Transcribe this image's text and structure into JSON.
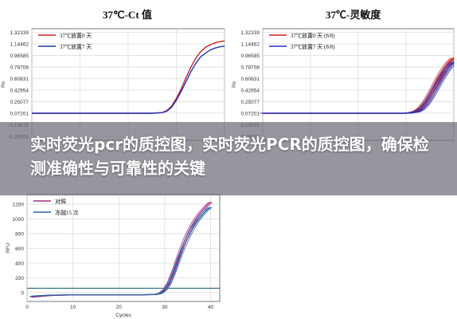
{
  "banner": {
    "text": "实时荧光pcr的质控图，实时荧光PCR的质控图，确保检测准确性与可靠性的关键"
  },
  "chart_data": [
    {
      "type": "line",
      "title": "37℃-Ct 值",
      "xlabel": "",
      "ylabel": "Rn",
      "yticks": [
        "1.32339",
        "1.14462",
        "0.96585",
        "0.78708",
        "0.60831",
        "0.42954",
        "0.25077",
        "0.07201",
        "-0.10676",
        "-0.28553"
      ],
      "ylim": [
        -0.35,
        1.38
      ],
      "xlim": [
        0,
        40
      ],
      "grid": true,
      "legend_position": "top-left",
      "series": [
        {
          "name": "37℃放置0 天",
          "color": "#cc2222",
          "x": [
            0,
            10,
            20,
            25,
            27,
            28,
            29,
            30,
            31,
            32,
            33,
            34,
            35,
            36,
            37,
            38,
            39,
            40
          ],
          "y": [
            0.07,
            0.07,
            0.07,
            0.07,
            0.08,
            0.11,
            0.18,
            0.3,
            0.45,
            0.62,
            0.78,
            0.92,
            1.02,
            1.09,
            1.13,
            1.16,
            1.18,
            1.19
          ]
        },
        {
          "name": "37℃放置7 天",
          "color": "#2233bb",
          "x": [
            0,
            10,
            20,
            25,
            27,
            28,
            29,
            30,
            31,
            32,
            33,
            34,
            35,
            36,
            37,
            38,
            39,
            40
          ],
          "y": [
            0.07,
            0.07,
            0.07,
            0.07,
            0.08,
            0.1,
            0.16,
            0.27,
            0.41,
            0.56,
            0.71,
            0.84,
            0.94,
            1.0,
            1.05,
            1.08,
            1.1,
            1.11
          ]
        }
      ]
    },
    {
      "type": "line",
      "title": "37℃-灵敏度",
      "xlabel": "",
      "ylabel": "Rn",
      "yticks": [
        "1.32339",
        "1.14462",
        "0.96585",
        "0.78708",
        "0.60831",
        "0.42954",
        "0.25077",
        "0.07201",
        "-0.10676",
        "-0.28553"
      ],
      "ylim": [
        -0.35,
        1.38
      ],
      "xlim": [
        0,
        40
      ],
      "grid": true,
      "legend_position": "top-left",
      "series": [
        {
          "name": "37℃放置0 天  (8/8)",
          "color": "#cc2222",
          "x": [
            0,
            10,
            20,
            28,
            30,
            31,
            32,
            33,
            34,
            35,
            36,
            37,
            38,
            39,
            40
          ],
          "y": [
            0.07,
            0.07,
            0.07,
            0.07,
            0.07,
            0.08,
            0.1,
            0.15,
            0.24,
            0.36,
            0.5,
            0.64,
            0.76,
            0.86,
            0.93
          ]
        },
        {
          "name": "37℃放置7 天  (8/8)",
          "color": "#2233bb",
          "x": [
            0,
            10,
            20,
            28,
            30,
            31,
            32,
            33,
            34,
            35,
            36,
            37,
            38,
            39,
            40
          ],
          "y": [
            0.07,
            0.07,
            0.07,
            0.07,
            0.07,
            0.08,
            0.09,
            0.13,
            0.21,
            0.32,
            0.45,
            0.58,
            0.7,
            0.8,
            0.87
          ]
        }
      ]
    },
    {
      "type": "line",
      "title": "",
      "xlabel": "Cycles",
      "ylabel": "RFU",
      "yticks": [
        "0",
        "200",
        "400",
        "600",
        "800",
        "1000",
        "1200"
      ],
      "xticks": [
        "0",
        "10",
        "20",
        "30",
        "40"
      ],
      "ylim": [
        -120,
        1330
      ],
      "xlim": [
        0,
        42
      ],
      "grid": true,
      "legend_position": "top-left",
      "threshold": 60,
      "series": [
        {
          "name": "对照",
          "color": "#a03080",
          "x": [
            1,
            5,
            10,
            15,
            20,
            25,
            28,
            29,
            30,
            31,
            32,
            33,
            34,
            35,
            36,
            37,
            38,
            39,
            40
          ],
          "y": [
            -60,
            -40,
            -30,
            -30,
            -30,
            -30,
            -25,
            -10,
            40,
            140,
            300,
            480,
            650,
            800,
            920,
            1020,
            1100,
            1170,
            1230
          ]
        },
        {
          "name": "冻融15 次",
          "color": "#2266aa",
          "x": [
            1,
            5,
            10,
            15,
            20,
            25,
            28,
            29,
            30,
            31,
            32,
            33,
            34,
            35,
            36,
            37,
            38,
            39,
            40
          ],
          "y": [
            -50,
            -35,
            -30,
            -30,
            -30,
            -30,
            -26,
            -14,
            30,
            120,
            270,
            440,
            600,
            740,
            860,
            960,
            1040,
            1110,
            1160
          ]
        }
      ]
    }
  ]
}
